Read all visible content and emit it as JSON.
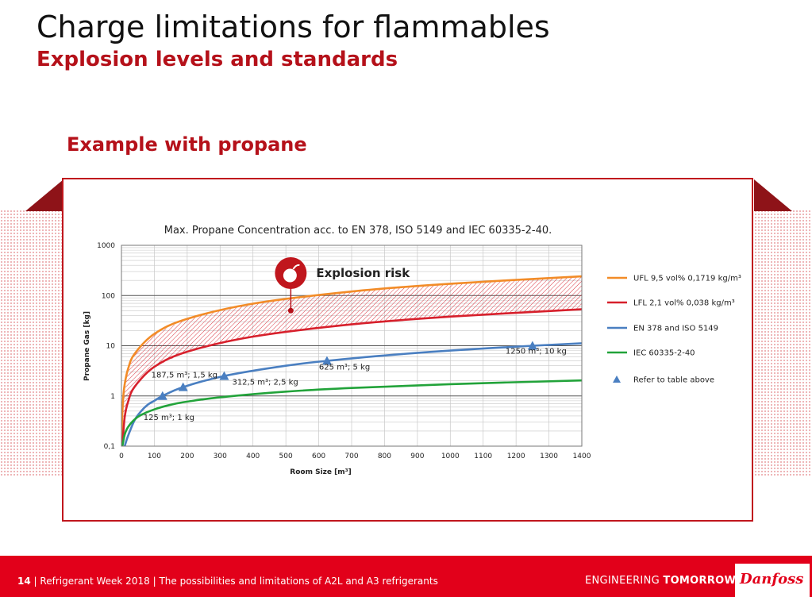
{
  "slide": {
    "title": "Charge limitations for flammables",
    "subtitle": "Explosion levels and standards",
    "section_title": "Example with propane"
  },
  "footer": {
    "page_number": "14",
    "separator": "|",
    "event": "Refrigerant Week 2018",
    "talk": "The possibilities and limitations of A2L and A3 refrigerants",
    "tagline_regular": "ENGINEERING",
    "tagline_bold": "TOMORROW",
    "logo_text": "Danfoss"
  },
  "colors": {
    "brand_red": "#e2001a",
    "heading_red": "#b5111a",
    "ufl": "#f28c28",
    "lfl": "#d7202c",
    "en378": "#4a7fc1",
    "iec": "#22a33a"
  },
  "chart_data": {
    "type": "line",
    "title": "Max. Propane Concentration acc. to EN 378, ISO 5149 and IEC 60335-2-40.",
    "xlabel": "Room Size [m³]",
    "ylabel": "Propane Gas [kg]",
    "xlim": [
      0,
      1400
    ],
    "ylim": [
      0.1,
      1000
    ],
    "y_scale": "log",
    "x_ticks": [
      "0",
      "100",
      "200",
      "300",
      "400",
      "500",
      "600",
      "700",
      "800",
      "900",
      "1000",
      "1100",
      "1200",
      "1300",
      "1400"
    ],
    "y_ticks": [
      "0,1",
      "1",
      "10",
      "100",
      "1000"
    ],
    "grid": true,
    "legend_position": "right",
    "series": [
      {
        "name": "UFL 9,5 vol% 0,1719 kg/m³",
        "color": "#f28c28",
        "x": [
          0,
          2,
          5,
          10,
          20,
          40,
          100,
          200,
          400,
          700,
          1000,
          1400
        ],
        "y": [
          0.1,
          0.34,
          0.86,
          1.72,
          3.44,
          6.9,
          17.2,
          34.4,
          68.8,
          120.3,
          171.9,
          240.7
        ]
      },
      {
        "name": "LFL 2,1 vol% 0,038 kg/m³",
        "color": "#d7202c",
        "x": [
          0,
          3,
          10,
          20,
          40,
          100,
          200,
          400,
          700,
          1000,
          1400
        ],
        "y": [
          0.1,
          0.114,
          0.38,
          0.76,
          1.52,
          3.8,
          7.6,
          15.2,
          26.6,
          38.0,
          53.2
        ]
      },
      {
        "name": "EN 378 and ISO 5149",
        "color": "#4a7fc1",
        "x": [
          10,
          20,
          40,
          60,
          80,
          100,
          125,
          187.5,
          312.5,
          500,
          625,
          800,
          1000,
          1250,
          1400
        ],
        "y": [
          0.1,
          0.16,
          0.33,
          0.5,
          0.67,
          0.8,
          1.0,
          1.5,
          2.5,
          4.0,
          5.0,
          6.4,
          8.0,
          10.0,
          11.2
        ]
      },
      {
        "name": "IEC 60335-2-40",
        "color": "#22a33a",
        "x": [
          3,
          10,
          20,
          40,
          60,
          100,
          150,
          200,
          300,
          500,
          700,
          1000,
          1400
        ],
        "y": [
          0.1,
          0.17,
          0.24,
          0.34,
          0.42,
          0.54,
          0.67,
          0.77,
          0.94,
          1.22,
          1.44,
          1.72,
          2.04
        ]
      }
    ],
    "reference_points": {
      "name": "Refer to table above",
      "color": "#4a7fc1",
      "points": [
        {
          "x": 125,
          "y": 1,
          "label": "125 m³; 1 kg"
        },
        {
          "x": 187.5,
          "y": 1.5,
          "label": "187,5 m³; 1,5 kg"
        },
        {
          "x": 312.5,
          "y": 2.5,
          "label": "312,5 m³; 2,5 kg"
        },
        {
          "x": 625,
          "y": 5,
          "label": "625 m³; 5 kg"
        },
        {
          "x": 1250,
          "y": 10,
          "label": "1250 m³; 10 kg"
        }
      ]
    },
    "annotation": {
      "text": "Explosion risk",
      "icon": "bomb-icon",
      "x": 515,
      "y": 50
    }
  }
}
